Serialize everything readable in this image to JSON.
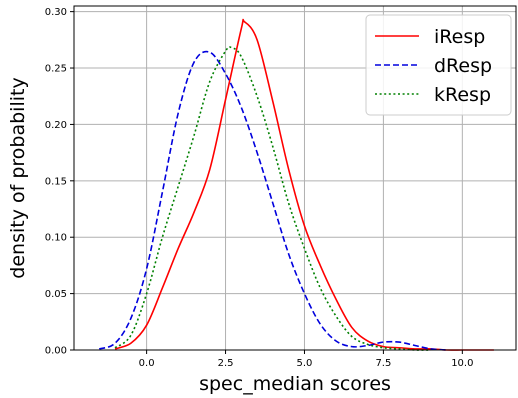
{
  "chart_data": {
    "type": "line",
    "xlabel": "spec_median scores",
    "ylabel": "density of probability",
    "xlim": [
      -2.3,
      11.7
    ],
    "ylim": [
      0,
      0.305
    ],
    "grid": true,
    "legend_position": "top-right",
    "x_ticks": [
      0.0,
      2.5,
      5.0,
      7.5,
      10.0
    ],
    "x_tick_labels": [
      "0.0",
      "2.5",
      "5.0",
      "7.5",
      "10.0"
    ],
    "y_ticks": [
      0.0,
      0.05,
      0.1,
      0.15,
      0.2,
      0.25,
      0.3
    ],
    "y_tick_labels": [
      "0.00",
      "0.05",
      "0.10",
      "0.15",
      "0.20",
      "0.25",
      "0.30"
    ],
    "series": [
      {
        "name": "iResp",
        "color": "#ff0000",
        "dash": "solid",
        "x": [
          -1.0,
          -0.5,
          0.0,
          0.5,
          1.0,
          1.5,
          2.0,
          2.5,
          3.0,
          3.1,
          3.5,
          4.0,
          4.5,
          5.0,
          5.5,
          6.0,
          6.5,
          7.0,
          7.5,
          8.0,
          8.5,
          9.0,
          9.5,
          10.0,
          10.5,
          11.0
        ],
        "y": [
          0.001,
          0.006,
          0.022,
          0.055,
          0.09,
          0.122,
          0.16,
          0.222,
          0.285,
          0.291,
          0.275,
          0.22,
          0.16,
          0.11,
          0.075,
          0.045,
          0.02,
          0.008,
          0.003,
          0.002,
          0.001,
          0.001,
          0.0,
          0.0,
          0.0,
          0.0
        ]
      },
      {
        "name": "dResp",
        "color": "#0000dd",
        "dash": "dashed",
        "x": [
          -1.5,
          -1.0,
          -0.5,
          0.0,
          0.5,
          1.0,
          1.5,
          2.0,
          2.5,
          3.0,
          3.5,
          4.0,
          4.5,
          5.0,
          5.5,
          6.0,
          6.5,
          7.0,
          7.5,
          8.0,
          8.5,
          9.0,
          9.5
        ],
        "y": [
          0.001,
          0.006,
          0.028,
          0.072,
          0.14,
          0.21,
          0.255,
          0.264,
          0.245,
          0.215,
          0.175,
          0.13,
          0.085,
          0.05,
          0.023,
          0.008,
          0.003,
          0.004,
          0.007,
          0.007,
          0.004,
          0.001,
          0.0
        ]
      },
      {
        "name": "kResp",
        "color": "#008000",
        "dash": "dotted",
        "x": [
          -1.0,
          -0.5,
          0.0,
          0.5,
          1.0,
          1.5,
          2.0,
          2.5,
          2.7,
          3.0,
          3.5,
          4.0,
          4.5,
          5.0,
          5.5,
          6.0,
          6.5,
          7.0,
          7.5,
          8.0,
          8.5,
          9.0
        ],
        "y": [
          0.002,
          0.013,
          0.05,
          0.1,
          0.145,
          0.19,
          0.238,
          0.265,
          0.268,
          0.26,
          0.225,
          0.18,
          0.13,
          0.09,
          0.055,
          0.03,
          0.012,
          0.005,
          0.002,
          0.001,
          0.0,
          0.0
        ]
      }
    ]
  }
}
